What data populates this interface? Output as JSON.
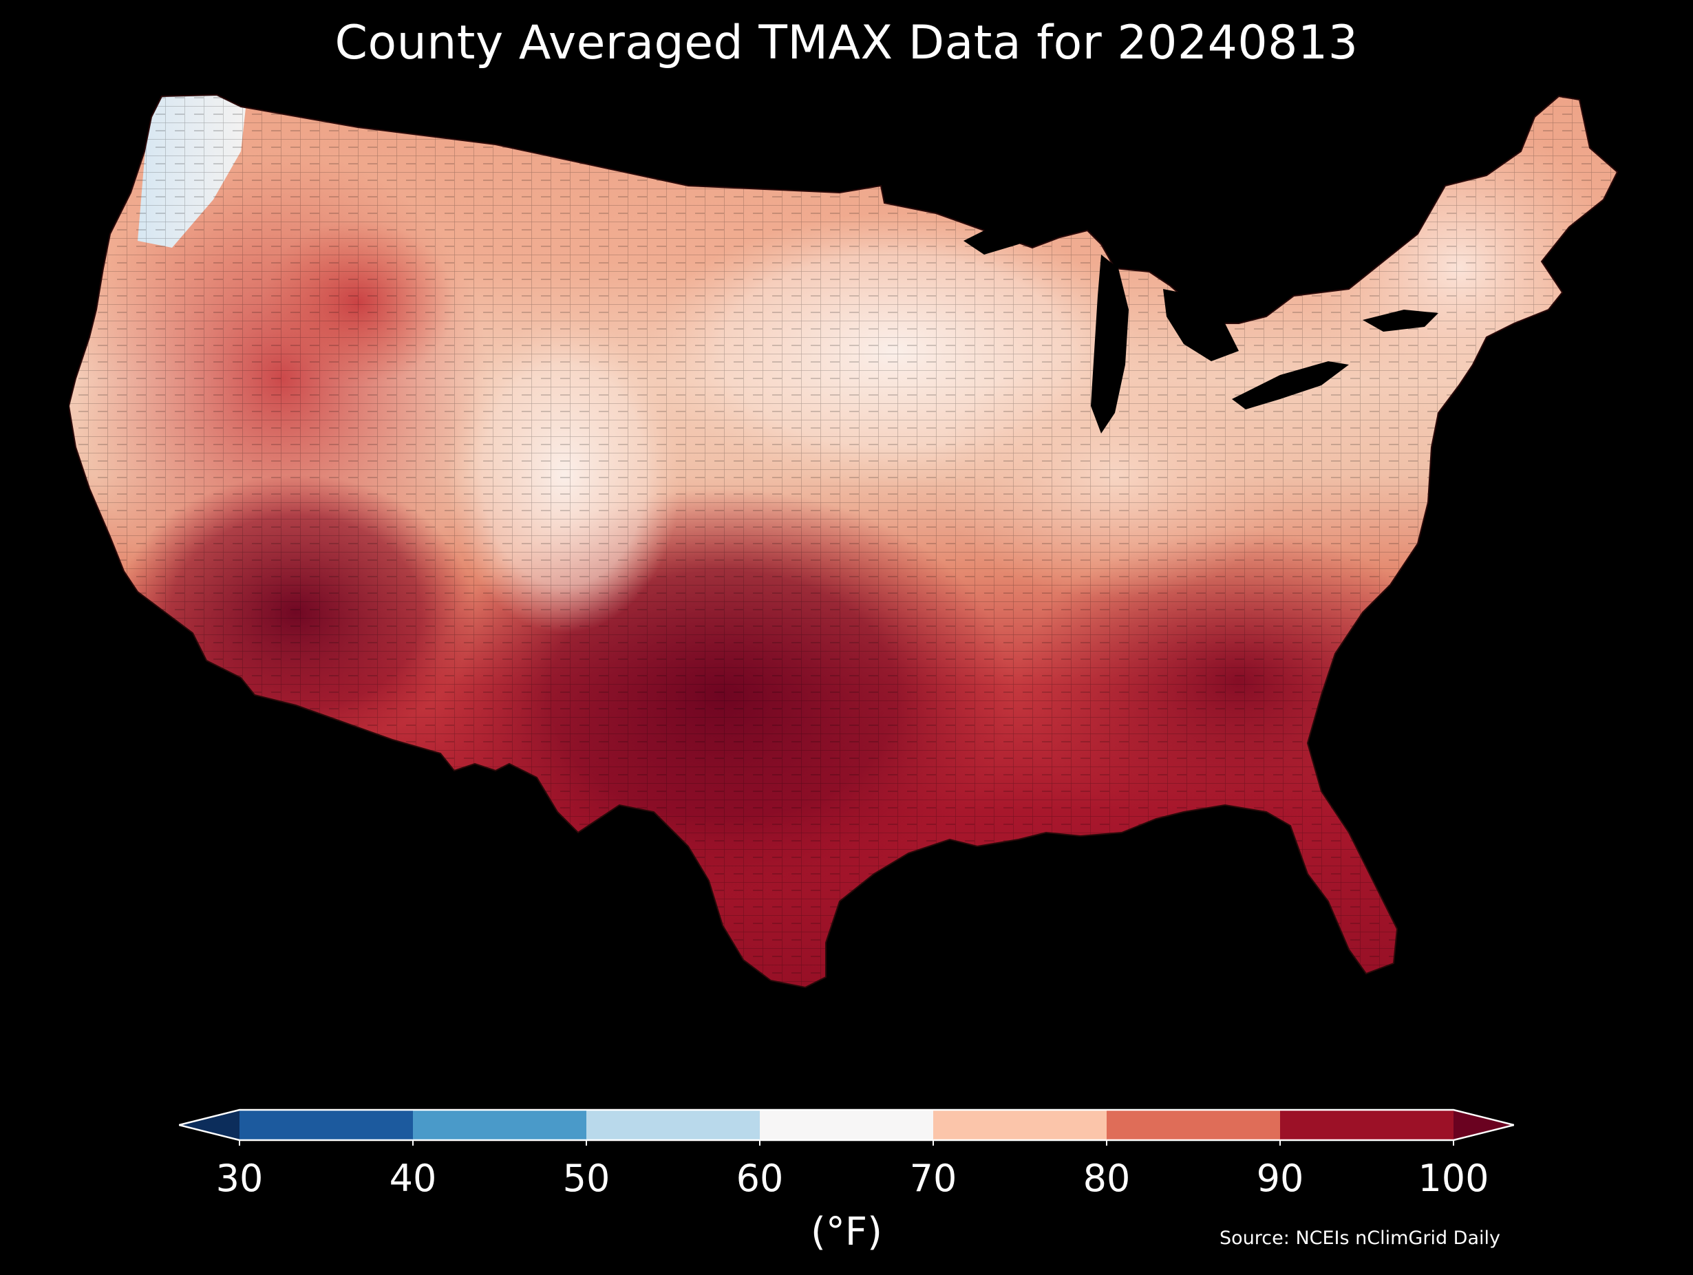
{
  "title": "County Averaged TMAX Data for 20240813",
  "colorbar": {
    "ticks": [
      "30",
      "40",
      "50",
      "60",
      "70",
      "80",
      "90",
      "100"
    ],
    "values": [
      30,
      40,
      50,
      60,
      70,
      80,
      90,
      100
    ],
    "bins": [
      {
        "from": 30,
        "to": 40,
        "color": "#1c5a9e"
      },
      {
        "from": 40,
        "to": 50,
        "color": "#4a9ac9"
      },
      {
        "from": 50,
        "to": 60,
        "color": "#b9d9eb"
      },
      {
        "from": 60,
        "to": 70,
        "color": "#f7f6f6"
      },
      {
        "from": 70,
        "to": 80,
        "color": "#fbc5aa"
      },
      {
        "from": 80,
        "to": 90,
        "color": "#df6d58"
      },
      {
        "from": 90,
        "to": 100,
        "color": "#9c1127"
      }
    ],
    "under_color": "#0c2d5b",
    "over_color": "#6a0220",
    "unit": "(°F)"
  },
  "map": {
    "region": "Contiguous United States",
    "projection": "conic",
    "legend_placement": "bottom",
    "background": "#000000",
    "lakes_color": "#000000"
  },
  "source": "Source: NCEIs nClimGrid Daily"
}
